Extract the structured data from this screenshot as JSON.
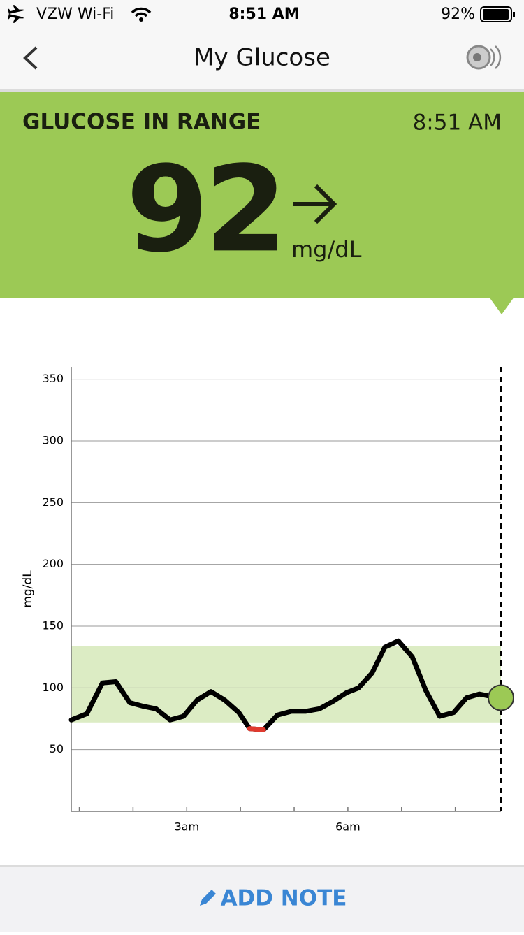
{
  "status_bar": {
    "carrier": "VZW Wi-Fi",
    "time": "8:51 AM",
    "battery": "92%"
  },
  "nav": {
    "title": "My Glucose"
  },
  "banner": {
    "status": "GLUCOSE IN RANGE",
    "time": "8:51 AM",
    "value": "92",
    "unit": "mg/dL"
  },
  "chart_data": {
    "type": "line",
    "y_label": "mg/dL",
    "x": [
      0.85,
      1.14,
      1.43,
      1.68,
      1.94,
      2.2,
      2.43,
      2.69,
      2.94,
      3.19,
      3.45,
      3.71,
      3.97,
      4.17,
      4.43,
      4.69,
      4.95,
      5.21,
      5.47,
      5.72,
      5.97,
      6.2,
      6.45,
      6.69,
      6.94,
      7.2,
      7.45,
      7.71,
      7.97,
      8.21,
      8.45,
      8.68,
      8.85
    ],
    "series": [
      {
        "color": "#000000",
        "low_color": "#e03a2f",
        "values": [
          74,
          79,
          104,
          105,
          88,
          85,
          83,
          74,
          77,
          90,
          97,
          90,
          80,
          67,
          66,
          78,
          81,
          81,
          83,
          89,
          96,
          100,
          112,
          133,
          138,
          125,
          98,
          77,
          80,
          92,
          95,
          93,
          92
        ]
      }
    ],
    "xlim": [
      0.85,
      8.85
    ],
    "ylim": [
      0,
      360
    ],
    "yticks": [
      50,
      100,
      150,
      200,
      250,
      300,
      350
    ],
    "xticks": [
      {
        "value": 3,
        "label": "3am"
      },
      {
        "value": 6,
        "label": "6am"
      }
    ],
    "minor_xticks": [
      1,
      2,
      4,
      5,
      7,
      8
    ],
    "target_range": [
      72,
      134
    ],
    "target_color": "#dcecc4",
    "grid": true,
    "current_marker_color": "#9cc955"
  },
  "footer": {
    "action": "ADD NOTE"
  }
}
